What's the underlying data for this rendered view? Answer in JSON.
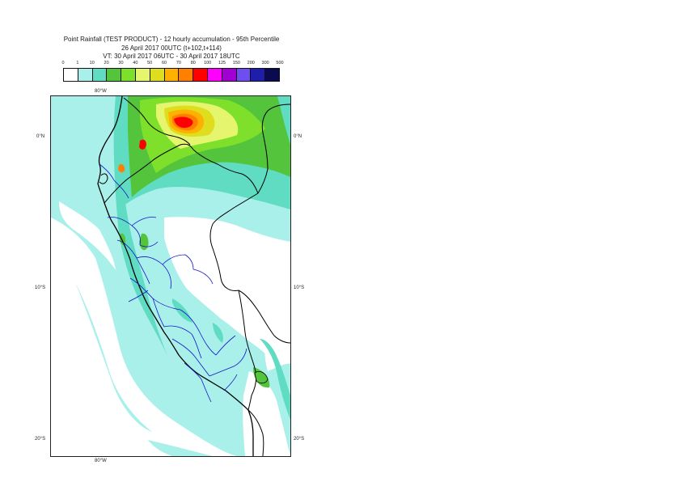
{
  "header": {
    "title": "Point Rainfall (TEST PRODUCT) - 12 hourly accumulation - 95th Percentile",
    "base_time": "26 April 2017 00UTC (t+102,t+114)",
    "valid_time": "VT: 30 April 2017 06UTC - 30 April 2017 18UTC"
  },
  "legend": {
    "ticks": [
      "0",
      "1",
      "10",
      "20",
      "30",
      "40",
      "50",
      "60",
      "70",
      "80",
      "100",
      "125",
      "150",
      "200",
      "300",
      "500"
    ],
    "colors": [
      "#ffffff",
      "#aaf0ea",
      "#5fdcc2",
      "#54c43c",
      "#7ee02a",
      "#e6f56e",
      "#dede1e",
      "#ffb000",
      "#ff8000",
      "#ff0000",
      "#ff00ff",
      "#a000d2",
      "#6e4ef0",
      "#1e1eaa",
      "#0a0a50"
    ]
  },
  "map": {
    "longitude_labels": {
      "top": "80°W",
      "bottom": "80°W"
    },
    "latitude_labels": {
      "equator": "0°N",
      "ten_south": "10°S",
      "twenty_south": "20°S"
    }
  }
}
